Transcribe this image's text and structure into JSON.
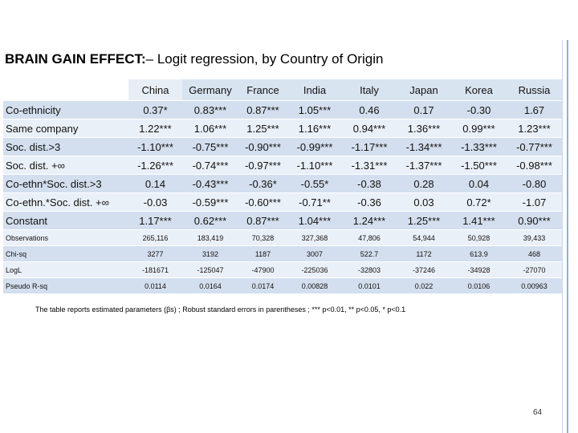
{
  "title": {
    "bold": "BRAIN GAIN EFFECT:",
    "rest": "– Logit regression, by Country of Origin"
  },
  "table": {
    "columns": [
      "China",
      "Germany",
      "France",
      "India",
      "Italy",
      "Japan",
      "Korea",
      "Russia"
    ],
    "rows_main": [
      {
        "label": "Co-ethnicity",
        "values": [
          "0.37*",
          "0.83***",
          "0.87***",
          "1.05***",
          "0.46",
          "0.17",
          "-0.30",
          "1.67"
        ]
      },
      {
        "label": "Same company",
        "values": [
          "1.22***",
          "1.06***",
          "1.25***",
          "1.16***",
          "0.94***",
          "1.36***",
          "0.99***",
          "1.23***"
        ]
      },
      {
        "label": "Soc. dist.>3",
        "values": [
          "-1.10***",
          "-0.75***",
          "-0.90***",
          "-0.99***",
          "-1.17***",
          "-1.34***",
          "-1.33***",
          "-0.77***"
        ]
      },
      {
        "label": "Soc. dist. +∞",
        "values": [
          "-1.26***",
          "-0.74***",
          "-0.97***",
          "-1.10***",
          "-1.31***",
          "-1.37***",
          "-1.50***",
          "-0.98***"
        ]
      },
      {
        "label": "Co-ethn*Soc. dist.>3",
        "values": [
          "0.14",
          "-0.43***",
          "-0.36*",
          "-0.55*",
          "-0.38",
          "0.28",
          "0.04",
          "-0.80"
        ]
      },
      {
        "label": "Co-ethn.*Soc. dist. +∞",
        "values": [
          "-0.03",
          "-0.59***",
          "-0.60***",
          "-0.71**",
          "-0.36",
          "0.03",
          "0.72*",
          "-1.07"
        ]
      },
      {
        "label": "Constant",
        "values": [
          "1.17***",
          "0.62***",
          "0.87***",
          "1.04***",
          "1.24***",
          "1.25***",
          "1.41***",
          "0.90***"
        ]
      }
    ],
    "rows_stats": [
      {
        "label": "Observations",
        "values": [
          "265,116",
          "183,419",
          "70,328",
          "327,368",
          "47,806",
          "54,944",
          "50,928",
          "39,433"
        ]
      },
      {
        "label": "Chi-sq",
        "values": [
          "3277",
          "3192",
          "1187",
          "3007",
          "522.7",
          "1172",
          "613.9",
          "468"
        ]
      },
      {
        "label": "LogL",
        "values": [
          "-181671",
          "-125047",
          "-47900",
          "-225036",
          "-32803",
          "-37246",
          "-34928",
          "-27070"
        ]
      },
      {
        "label": "Pseudo R-sq",
        "values": [
          "0.0114",
          "0.0164",
          "0.0174",
          "0.00828",
          "0.0101",
          "0.022",
          "0.0106",
          "0.00963"
        ]
      }
    ]
  },
  "note": "The table reports estimated parameters (βs) ; Robust standard errors in parentheses ; *** p<0.01, ** p<0.05, * p<0.1",
  "page_number": "64"
}
